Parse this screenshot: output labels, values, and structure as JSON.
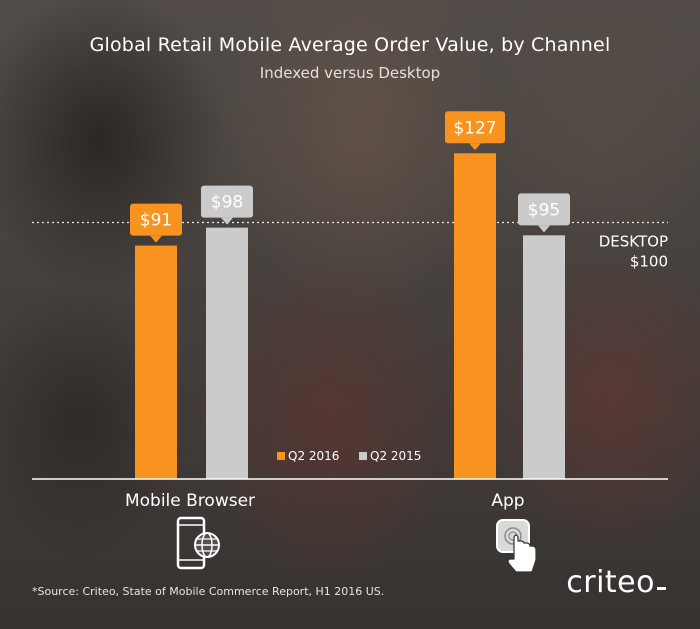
{
  "chart_data": {
    "type": "bar",
    "title": "Global Retail Mobile Average Order Value, by Channel",
    "subtitle": "Indexed versus Desktop",
    "categories": [
      "Mobile Browser",
      "App"
    ],
    "series": [
      {
        "name": "Q2 2016",
        "values": [
          91,
          127
        ],
        "labels": [
          "$91",
          "$127"
        ],
        "color": "#f7931e"
      },
      {
        "name": "Q2 2015",
        "values": [
          98,
          95
        ],
        "labels": [
          "$98",
          "$95"
        ],
        "color": "#cbcbcb"
      }
    ],
    "reference_line": {
      "value": 100,
      "label_line1": "DESKTOP",
      "label_line2": "$100"
    },
    "ylim": [
      0,
      131
    ],
    "legend": "bottom-center",
    "grid": false
  },
  "icons": {
    "mobile_browser": "phone-globe-icon",
    "app": "app-tap-icon"
  },
  "footer": {
    "source": "*Source: Criteo, State of Mobile Commerce Report, H1 2016 US.",
    "brand": "criteo"
  }
}
